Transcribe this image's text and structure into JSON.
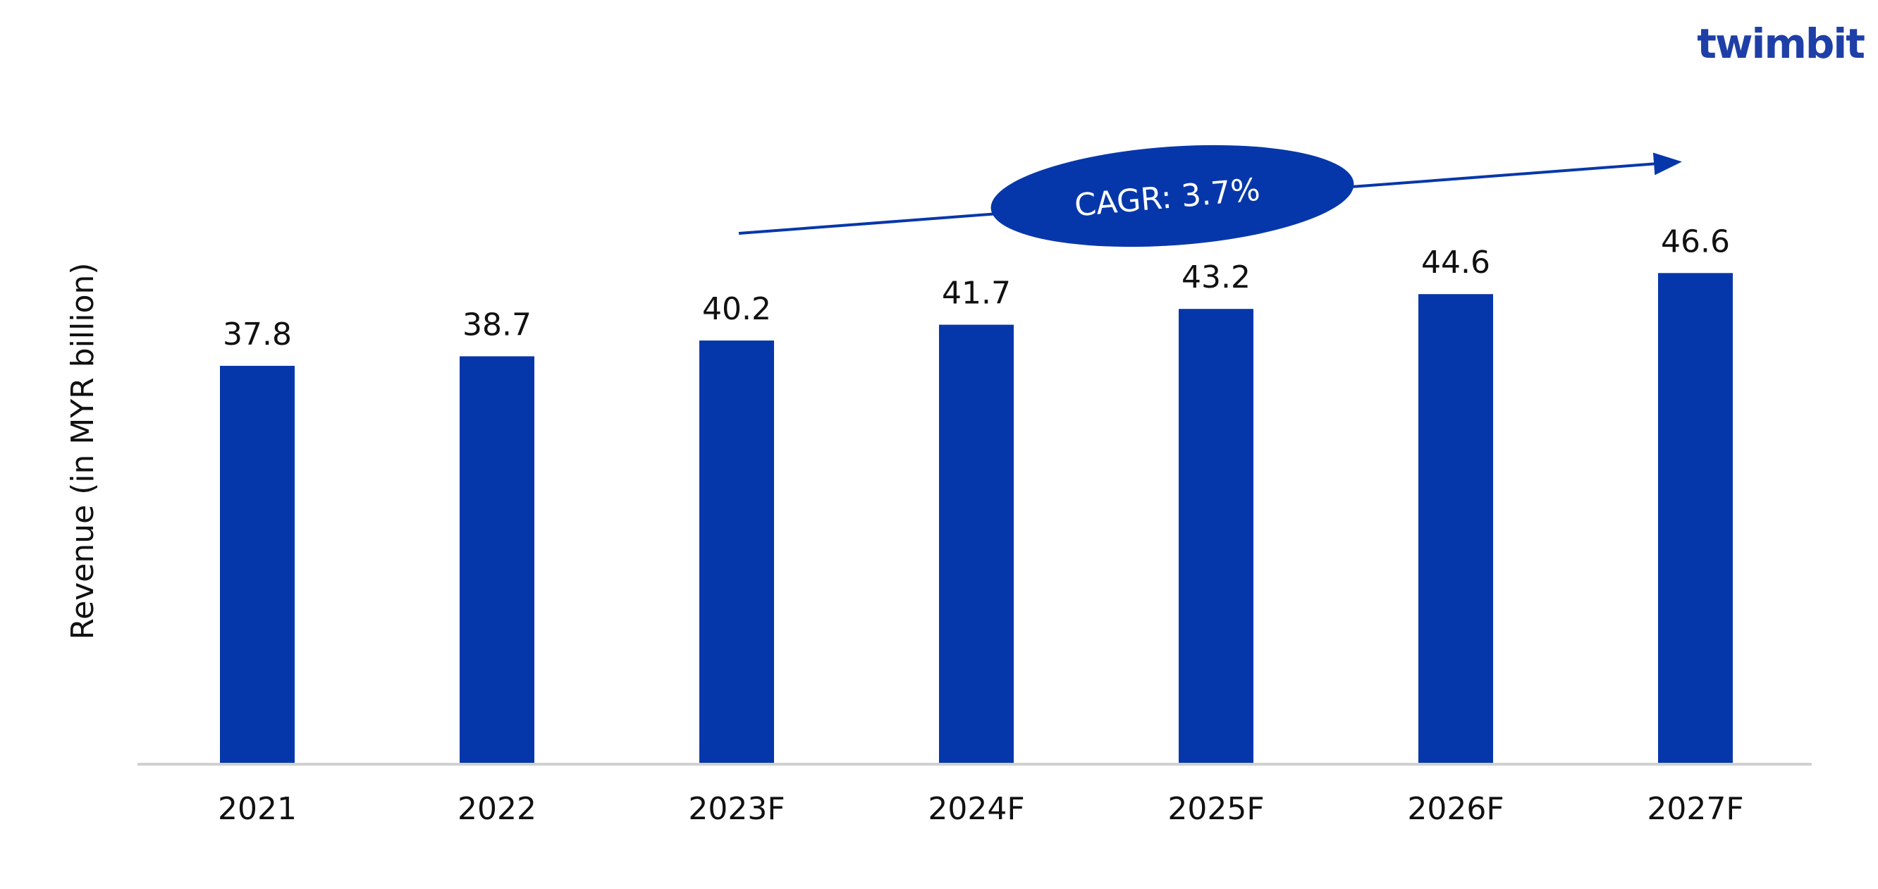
{
  "brand": {
    "logo_text": "twimbit"
  },
  "colors": {
    "bar": "#0637aa",
    "axis": "#d0d0d0",
    "text": "#111111",
    "annotation_text": "#ffffff",
    "logo": "#1f3fa8",
    "logo_dot": "#e0474c"
  },
  "chart_data": {
    "type": "bar",
    "title": "",
    "xlabel": "",
    "ylabel": "Revenue (in MYR billion)",
    "categories": [
      "2021",
      "2022",
      "2023F",
      "2024F",
      "2025F",
      "2026F",
      "2027F"
    ],
    "values": [
      37.8,
      38.7,
      40.2,
      41.7,
      43.2,
      44.6,
      46.6
    ],
    "data_labels": [
      "37.8",
      "38.7",
      "40.2",
      "41.7",
      "43.2",
      "44.6",
      "46.6"
    ],
    "ylim": [
      0,
      50
    ],
    "grid": false,
    "legend": "none",
    "annotations": [
      {
        "text": "CAGR: 3.7%",
        "type": "trend-arrow"
      }
    ]
  }
}
